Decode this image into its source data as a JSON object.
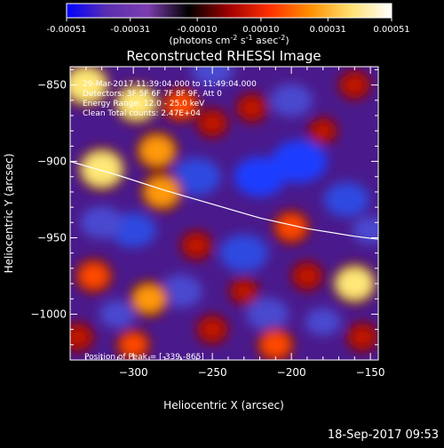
{
  "colorbar": {
    "ticks": [
      "-0.00051",
      "-0.00031",
      "-0.00010",
      "0.00010",
      "0.00031",
      "0.00051"
    ],
    "tick_values": [
      -0.00051,
      -0.00031,
      -0.0001,
      0.0001,
      0.00031,
      0.00051
    ],
    "range": [
      -0.00051,
      0.00051
    ],
    "units_main": "(photons cm",
    "units_exp1": "-2",
    "units_mid": " s",
    "units_exp2": "-1",
    "units_mid2": " asec",
    "units_exp3": "-2",
    "units_end": ")",
    "colors": [
      "#0000ff",
      "#5a2fb0",
      "#7d3db0",
      "#000000",
      "#a00000",
      "#ff3000",
      "#ff9000",
      "#ffe070",
      "#ffffff"
    ]
  },
  "chart_data": {
    "type": "heatmap",
    "title": "Reconstructed RHESSI Image",
    "xlabel": "Heliocentric X (arcsec)",
    "ylabel": "Heliocentric Y (arcsec)",
    "xlim": [
      -340,
      -145
    ],
    "ylim": [
      -1030,
      -838
    ],
    "xticks": [
      -300,
      -250,
      -200,
      -150
    ],
    "yticks": [
      -850,
      -900,
      -950,
      -1000
    ],
    "xtick_labels": [
      "−300",
      "−250",
      "−200",
      "−150"
    ],
    "ytick_labels": [
      "−850",
      "−900",
      "−950",
      "−1000"
    ],
    "limb_curve": [
      [
        -340,
        -900
      ],
      [
        -310,
        -909
      ],
      [
        -280,
        -919
      ],
      [
        -250,
        -928
      ],
      [
        -220,
        -937
      ],
      [
        -190,
        -944
      ],
      [
        -160,
        -949
      ],
      [
        -145,
        -951
      ]
    ],
    "hot_spots": [
      {
        "x": -330,
        "y": -850,
        "value": 0.00051
      },
      {
        "x": -320,
        "y": -905,
        "value": 0.00051
      },
      {
        "x": -298,
        "y": -862,
        "value": 0.00045
      },
      {
        "x": -285,
        "y": -893,
        "value": 0.0004
      },
      {
        "x": -270,
        "y": -863,
        "value": 0.00031
      },
      {
        "x": -282,
        "y": -920,
        "value": 0.0004
      },
      {
        "x": -250,
        "y": -875,
        "value": 0.0002
      },
      {
        "x": -225,
        "y": -865,
        "value": 0.0002
      },
      {
        "x": -200,
        "y": -943,
        "value": 0.0003
      },
      {
        "x": -190,
        "y": -975,
        "value": 0.0002
      },
      {
        "x": -160,
        "y": -980,
        "value": 0.00045
      },
      {
        "x": -325,
        "y": -975,
        "value": 0.00031
      },
      {
        "x": -290,
        "y": -990,
        "value": 0.00035
      },
      {
        "x": -250,
        "y": -1010,
        "value": 0.0002
      },
      {
        "x": -210,
        "y": -1020,
        "value": 0.00031
      },
      {
        "x": -155,
        "y": -1015,
        "value": 0.0002
      },
      {
        "x": -180,
        "y": -880,
        "value": 0.00015
      },
      {
        "x": -160,
        "y": -850,
        "value": 0.0002
      },
      {
        "x": -260,
        "y": -955,
        "value": 0.0002
      },
      {
        "x": -230,
        "y": -985,
        "value": 0.00015
      },
      {
        "x": -300,
        "y": -1020,
        "value": 0.00025
      },
      {
        "x": -335,
        "y": -1015,
        "value": 0.0002
      }
    ],
    "cold_spots": [
      {
        "x": -195,
        "y": -900,
        "value": -0.00051
      },
      {
        "x": -220,
        "y": -910,
        "value": -0.00045
      },
      {
        "x": -260,
        "y": -910,
        "value": -0.0004
      },
      {
        "x": -230,
        "y": -960,
        "value": -0.0004
      },
      {
        "x": -165,
        "y": -925,
        "value": -0.00035
      },
      {
        "x": -300,
        "y": -945,
        "value": -0.00035
      },
      {
        "x": -250,
        "y": -840,
        "value": -0.0003
      },
      {
        "x": -200,
        "y": -860,
        "value": -0.0003
      },
      {
        "x": -320,
        "y": -940,
        "value": -0.0003
      },
      {
        "x": -270,
        "y": -985,
        "value": -0.00031
      },
      {
        "x": -215,
        "y": -1000,
        "value": -0.0003
      },
      {
        "x": -180,
        "y": -1005,
        "value": -0.0002
      },
      {
        "x": -150,
        "y": -945,
        "value": -0.0002
      },
      {
        "x": -310,
        "y": -1000,
        "value": -0.0002
      }
    ],
    "info_lines": [
      "29-Mar-2017 11:39:04.000 to 11:49:04.000",
      "Detectors: 3F 5F 6F 7F 8F 9F, Att 0",
      "Energy Range: 12.0 - 25.0 keV",
      "Clean    Total counts: 2.47E+04"
    ],
    "peak_label": "Position of Peak = [-339,-865]"
  },
  "footer": {
    "timestamp": "18-Sep-2017 09:53"
  }
}
